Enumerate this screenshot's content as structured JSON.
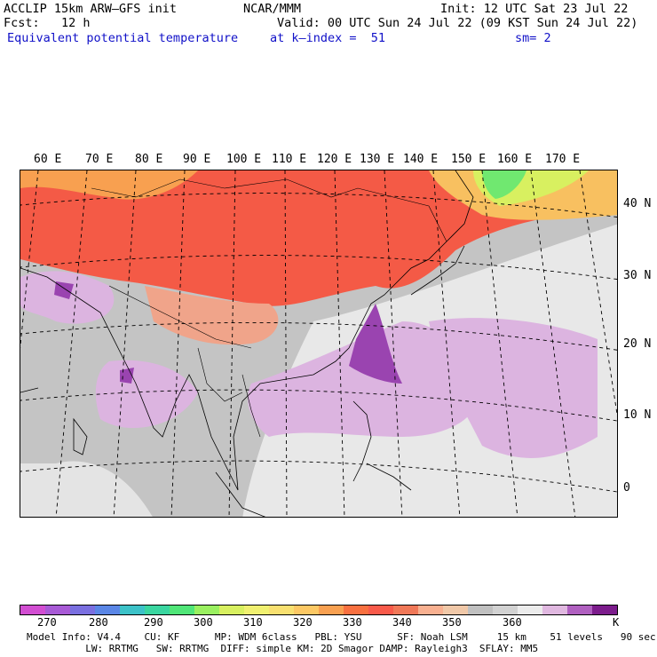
{
  "header": {
    "model": "ACCLIP 15km ARW–GFS init",
    "org": "NCAR/MMM",
    "init": "Init: 12 UTC Sat 23 Jul 22",
    "fcst": "Fcst:   12 h",
    "valid": "Valid: 00 UTC Sun 24 Jul 22 (09 KST Sun 24 Jul 22)",
    "field": "Equivalent potential temperature",
    "level": "at k–index =  51",
    "smooth": "sm= 2"
  },
  "map": {
    "lon_labels": [
      "60 E",
      "70 E",
      "80 E",
      "90 E",
      "100 E",
      "110 E",
      "120 E",
      "130 E",
      "140 E",
      "150 E",
      "160 E",
      "170 E"
    ],
    "lat_labels": [
      "40 N",
      "30 N",
      "20 N",
      "10 N",
      "0"
    ]
  },
  "colorbar": {
    "colors": [
      "#d24ed2",
      "#a85ad6",
      "#7a6fe0",
      "#5a86e6",
      "#3cc2c8",
      "#3ad6a0",
      "#50e678",
      "#9af060",
      "#d8f060",
      "#f0f070",
      "#f8e070",
      "#fcc864",
      "#f8a050",
      "#f87040",
      "#f85a4a",
      "#f07858",
      "#f8b090",
      "#f0c8a8",
      "#c0c0c0",
      "#d2d2d2",
      "#ececec",
      "#e0b8e0",
      "#b060c0",
      "#7c1c8c"
    ],
    "labels": [
      "270",
      "280",
      "290",
      "300",
      "310",
      "320",
      "330",
      "340",
      "350",
      "360",
      "K"
    ]
  },
  "footer": {
    "line1": "Model Info: V4.4    CU: KF      MP: WDM 6class   PBL: YSU      SF: Noah LSM     15 km    51 levels   90 sec",
    "line2": "          LW: RRTMG   SW: RRTMG  DIFF: simple KM: 2D Smagor DAMP: Rayleigh3  SFLAY: MM5"
  }
}
